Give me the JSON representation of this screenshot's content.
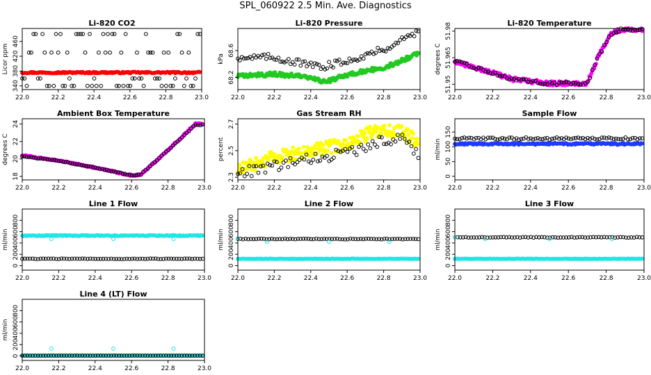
{
  "title": "SPL_060922  2.5 Min. Ave. Diagnostics",
  "colors": {
    "black": "#000000",
    "red": "#ff0000",
    "green": "#22c922",
    "magenta": "#ff00ff",
    "yellow": "#ffff00",
    "blue": "#1f3bff",
    "cyan": "#22e5e5"
  },
  "chart_data": [
    {
      "id": "co2",
      "type": "scatter",
      "title": "Li-820 CO2",
      "ylabel": "Licor ppm",
      "xlim": [
        22.0,
        23.0
      ],
      "ylim": [
        330,
        495
      ],
      "xticks": [
        22.0,
        22.2,
        22.4,
        22.6,
        22.8,
        23.0
      ],
      "xticklabels": [
        "22.0",
        "22.2",
        "22.4",
        "22.6",
        "22.8",
        "23.0"
      ],
      "yticks": [
        340,
        380,
        420,
        460
      ],
      "yticklabels": [
        "340",
        "380",
        "420",
        "460"
      ],
      "series": [
        {
          "name": "licor",
          "color": "red",
          "filled": true,
          "gen": {
            "kind": "flat",
            "n": 160,
            "base": 376,
            "noise": 2
          }
        },
        {
          "name": "licor_raw",
          "color": "black",
          "filled": false,
          "gen": {
            "kind": "bands",
            "n": 80,
            "levels": [
              340,
              360,
              430,
              480
            ],
            "noise": 0
          }
        }
      ]
    },
    {
      "id": "pressure",
      "type": "scatter",
      "title": "Li-820 Pressure",
      "ylabel": "kPa",
      "xlim": [
        22.0,
        23.0
      ],
      "ylim": [
        68.02,
        68.93
      ],
      "xticks": [
        22.0,
        22.2,
        22.4,
        22.6,
        22.8,
        23.0
      ],
      "xticklabels": [
        "22.0",
        "22.2",
        "22.4",
        "22.6",
        "22.8",
        "23.0"
      ],
      "yticks": [
        68.2,
        68.6
      ],
      "yticklabels": [
        "68.2",
        "68.6"
      ],
      "series": [
        {
          "name": "p_avg",
          "color": "green",
          "filled": true,
          "gen": {
            "kind": "pts",
            "n": 220,
            "noise": 0.03,
            "pts": [
              [
                22.0,
                68.22
              ],
              [
                22.2,
                68.25
              ],
              [
                22.35,
                68.22
              ],
              [
                22.48,
                68.13
              ],
              [
                22.6,
                68.24
              ],
              [
                22.8,
                68.35
              ],
              [
                22.9,
                68.45
              ],
              [
                23.0,
                68.58
              ]
            ]
          }
        },
        {
          "name": "p_raw",
          "color": "black",
          "filled": false,
          "gen": {
            "kind": "pts",
            "n": 90,
            "noise": 0.05,
            "pts": [
              [
                22.0,
                68.5
              ],
              [
                22.2,
                68.5
              ],
              [
                22.45,
                68.35
              ],
              [
                22.6,
                68.45
              ],
              [
                22.8,
                68.62
              ],
              [
                23.0,
                68.9
              ]
            ]
          }
        }
      ]
    },
    {
      "id": "licor_temp",
      "type": "scatter",
      "title": "Li-820 Temperature",
      "ylabel": "degrees C",
      "xlim": [
        22.0,
        23.0
      ],
      "ylim": [
        51.947,
        51.9815
      ],
      "xticks": [
        22.0,
        22.2,
        22.4,
        22.6,
        22.8,
        23.0
      ],
      "xticklabels": [
        "22.0",
        "22.2",
        "22.4",
        "22.6",
        "22.8",
        "23.0"
      ],
      "yticks": [
        51.95,
        51.965,
        51.98
      ],
      "yticklabels": [
        "51.95",
        "51.965",
        "51.98"
      ],
      "series": [
        {
          "name": "t_avg",
          "color": "magenta",
          "filled": true,
          "gen": {
            "kind": "pts",
            "n": 200,
            "noise": 0.0012,
            "pts": [
              [
                22.0,
                51.963
              ],
              [
                22.15,
                51.958
              ],
              [
                22.3,
                51.953
              ],
              [
                22.5,
                51.9505
              ],
              [
                22.7,
                51.9505
              ],
              [
                22.76,
                51.966
              ],
              [
                22.82,
                51.978
              ],
              [
                22.88,
                51.981
              ],
              [
                23.0,
                51.981
              ]
            ]
          }
        },
        {
          "name": "t_raw",
          "color": "black",
          "filled": false,
          "gen": {
            "kind": "pts",
            "n": 80,
            "noise": 0.0008,
            "pts": [
              [
                22.0,
                51.963
              ],
              [
                22.15,
                51.958
              ],
              [
                22.3,
                51.953
              ],
              [
                22.5,
                51.9505
              ],
              [
                22.7,
                51.9505
              ],
              [
                22.76,
                51.966
              ],
              [
                22.82,
                51.978
              ],
              [
                22.88,
                51.981
              ],
              [
                23.0,
                51.981
              ]
            ]
          }
        }
      ]
    },
    {
      "id": "ambient",
      "type": "scatter",
      "title": "Ambient Box Temperature",
      "ylabel": "degrees C",
      "xlim": [
        22.0,
        23.0
      ],
      "ylim": [
        17.6,
        24.6
      ],
      "xticks": [
        22.0,
        22.2,
        22.4,
        22.6,
        22.8,
        23.0
      ],
      "xticklabels": [
        "22.0",
        "22.2",
        "22.4",
        "22.6",
        "22.8",
        "23.0"
      ],
      "yticks": [
        18,
        20,
        22,
        24
      ],
      "yticklabels": [
        "18",
        "20",
        "22",
        "24"
      ],
      "series": [
        {
          "name": "amb_avg",
          "color": "magenta",
          "filled": true,
          "gen": {
            "kind": "pts",
            "n": 200,
            "noise": 0.08,
            "pts": [
              [
                22.0,
                20.4
              ],
              [
                22.2,
                19.8
              ],
              [
                22.4,
                19.0
              ],
              [
                22.6,
                18.1
              ],
              [
                22.65,
                18.2
              ],
              [
                22.8,
                21.0
              ],
              [
                22.95,
                24.0
              ],
              [
                23.0,
                24.0
              ]
            ]
          }
        },
        {
          "name": "amb_raw",
          "color": "black",
          "filled": false,
          "gen": {
            "kind": "pts",
            "n": 80,
            "noise": 0.05,
            "pts": [
              [
                22.0,
                20.3
              ],
              [
                22.2,
                19.8
              ],
              [
                22.4,
                19.0
              ],
              [
                22.6,
                18.1
              ],
              [
                22.65,
                18.2
              ],
              [
                22.8,
                21.0
              ],
              [
                22.95,
                23.9
              ],
              [
                23.0,
                23.9
              ]
            ]
          }
        }
      ]
    },
    {
      "id": "rh",
      "type": "scatter",
      "title": "Gas Stream RH",
      "ylabel": "percent",
      "xlim": [
        22.0,
        23.0
      ],
      "ylim": [
        2.28,
        2.74
      ],
      "xticks": [
        22.0,
        22.2,
        22.4,
        22.6,
        22.8,
        23.0
      ],
      "xticklabels": [
        "22.0",
        "22.2",
        "22.4",
        "22.6",
        "22.8",
        "23.0"
      ],
      "yticks": [
        2.3,
        2.5,
        2.7
      ],
      "yticklabels": [
        "2.3",
        "2.5",
        "2.7"
      ],
      "series": [
        {
          "name": "rh_avg",
          "color": "yellow",
          "filled": true,
          "gen": {
            "kind": "pts",
            "n": 240,
            "noise": 0.05,
            "pts": [
              [
                22.0,
                2.35
              ],
              [
                22.2,
                2.45
              ],
              [
                22.4,
                2.5
              ],
              [
                22.6,
                2.55
              ],
              [
                22.75,
                2.65
              ],
              [
                22.9,
                2.65
              ],
              [
                23.0,
                2.55
              ]
            ]
          }
        },
        {
          "name": "rh_raw",
          "color": "black",
          "filled": false,
          "gen": {
            "kind": "pts",
            "n": 80,
            "noise": 0.04,
            "pts": [
              [
                22.0,
                2.33
              ],
              [
                22.2,
                2.38
              ],
              [
                22.4,
                2.44
              ],
              [
                22.6,
                2.48
              ],
              [
                22.8,
                2.58
              ],
              [
                22.9,
                2.6
              ],
              [
                23.0,
                2.45
              ]
            ]
          }
        }
      ]
    },
    {
      "id": "sample",
      "type": "scatter",
      "title": "Sample Flow",
      "ylabel": "ml/min",
      "xlim": [
        22.0,
        23.0
      ],
      "ylim": [
        -12,
        195
      ],
      "xticks": [
        22.0,
        22.2,
        22.4,
        22.6,
        22.8,
        23.0
      ],
      "xticklabels": [
        "22.0",
        "22.2",
        "22.4",
        "22.6",
        "22.8",
        "23.0"
      ],
      "yticks": [
        0,
        50,
        100,
        150
      ],
      "yticklabels": [
        "0",
        "50",
        "100",
        "150"
      ],
      "series": [
        {
          "name": "sf_avg",
          "color": "blue",
          "filled": true,
          "gen": {
            "kind": "flat",
            "n": 180,
            "base": 110,
            "noise": 3
          }
        },
        {
          "name": "sf_raw",
          "color": "black",
          "filled": false,
          "gen": {
            "kind": "flat",
            "n": 80,
            "base": 128,
            "noise": 4
          }
        }
      ]
    },
    {
      "id": "line1",
      "type": "scatter",
      "title": "Line 1 Flow",
      "ylabel": "ml/min",
      "xlim": [
        22.0,
        23.0
      ],
      "ylim": [
        -80,
        1000
      ],
      "xticks": [
        22.0,
        22.2,
        22.4,
        22.6,
        22.8,
        23.0
      ],
      "xticklabels": [
        "22.0",
        "22.2",
        "22.4",
        "22.6",
        "22.8",
        "23.0"
      ],
      "yticks": [
        0,
        200,
        400,
        600,
        800
      ],
      "yticklabels": [
        "0",
        "200",
        "400",
        "600",
        "800"
      ],
      "series": [
        {
          "name": "l1_raw",
          "color": "black",
          "filled": false,
          "gen": {
            "kind": "flat",
            "n": 70,
            "base": 120,
            "noise": 5
          }
        },
        {
          "name": "l1_avg",
          "color": "cyan",
          "filled": true,
          "gen": {
            "kind": "flat",
            "n": 180,
            "base": 530,
            "noise": 8
          }
        },
        {
          "name": "l1_out",
          "color": "cyan",
          "filled": false,
          "gen": {
            "kind": "list",
            "x": [
              22.16,
              22.5,
              22.83
            ],
            "y": [
              470,
              470,
              470
            ]
          }
        }
      ]
    },
    {
      "id": "line2",
      "type": "scatter",
      "title": "Line 2 Flow",
      "ylabel": "ml/min",
      "xlim": [
        22.0,
        23.0
      ],
      "ylim": [
        -80,
        1000
      ],
      "xticks": [
        22.0,
        22.2,
        22.4,
        22.6,
        22.8,
        23.0
      ],
      "xticklabels": [
        "22.0",
        "22.2",
        "22.4",
        "22.6",
        "22.8",
        "23.0"
      ],
      "yticks": [
        0,
        200,
        400,
        600,
        800
      ],
      "yticklabels": [
        "0",
        "200",
        "400",
        "600",
        "800"
      ],
      "series": [
        {
          "name": "l2_avg",
          "color": "cyan",
          "filled": true,
          "gen": {
            "kind": "flat",
            "n": 180,
            "base": 120,
            "noise": 4
          }
        },
        {
          "name": "l2_raw",
          "color": "black",
          "filled": false,
          "gen": {
            "kind": "flat",
            "n": 70,
            "base": 470,
            "noise": 6
          }
        },
        {
          "name": "l2_out",
          "color": "cyan",
          "filled": false,
          "gen": {
            "kind": "list",
            "x": [
              22.0,
              22.16,
              22.5,
              22.83
            ],
            "y": [
              480,
              420,
              420,
              420
            ]
          }
        }
      ]
    },
    {
      "id": "line3",
      "type": "scatter",
      "title": "Line 3 Flow",
      "ylabel": "ml/min",
      "xlim": [
        22.0,
        23.0
      ],
      "ylim": [
        -80,
        1000
      ],
      "xticks": [
        22.0,
        22.2,
        22.4,
        22.6,
        22.8,
        23.0
      ],
      "xticklabels": [
        "22.0",
        "22.2",
        "22.4",
        "22.6",
        "22.8",
        "23.0"
      ],
      "yticks": [
        0,
        200,
        400,
        600,
        800
      ],
      "yticklabels": [
        "0",
        "200",
        "400",
        "600",
        "800"
      ],
      "series": [
        {
          "name": "l3_avg",
          "color": "cyan",
          "filled": true,
          "gen": {
            "kind": "flat",
            "n": 180,
            "base": 120,
            "noise": 4
          }
        },
        {
          "name": "l3_raw",
          "color": "black",
          "filled": false,
          "gen": {
            "kind": "flat",
            "n": 70,
            "base": 500,
            "noise": 6
          }
        },
        {
          "name": "l3_out",
          "color": "cyan",
          "filled": false,
          "gen": {
            "kind": "list",
            "x": [
              22.0,
              22.16,
              22.5,
              22.83
            ],
            "y": [
              500,
              470,
              470,
              470
            ]
          }
        }
      ]
    },
    {
      "id": "line4",
      "type": "scatter",
      "title": "Line 4 (LT) Flow",
      "ylabel": "ml/min",
      "xlim": [
        22.0,
        23.0
      ],
      "ylim": [
        -80,
        1000
      ],
      "xticks": [
        22.0,
        22.2,
        22.4,
        22.6,
        22.8,
        23.0
      ],
      "xticklabels": [
        "22.0",
        "22.2",
        "22.4",
        "22.6",
        "22.8",
        "23.0"
      ],
      "yticks": [
        0,
        200,
        400,
        600,
        800
      ],
      "yticklabels": [
        "0",
        "200",
        "400",
        "600",
        "800"
      ],
      "series": [
        {
          "name": "l4_avg",
          "color": "cyan",
          "filled": true,
          "gen": {
            "kind": "flat",
            "n": 120,
            "base": 5,
            "noise": 1
          }
        },
        {
          "name": "l4_raw",
          "color": "black",
          "filled": false,
          "gen": {
            "kind": "flat",
            "n": 70,
            "base": 5,
            "noise": 1
          }
        },
        {
          "name": "l4_out",
          "color": "cyan",
          "filled": false,
          "gen": {
            "kind": "list",
            "x": [
              22.16,
              22.5,
              22.83
            ],
            "y": [
              130,
              130,
              130
            ]
          }
        }
      ]
    }
  ]
}
